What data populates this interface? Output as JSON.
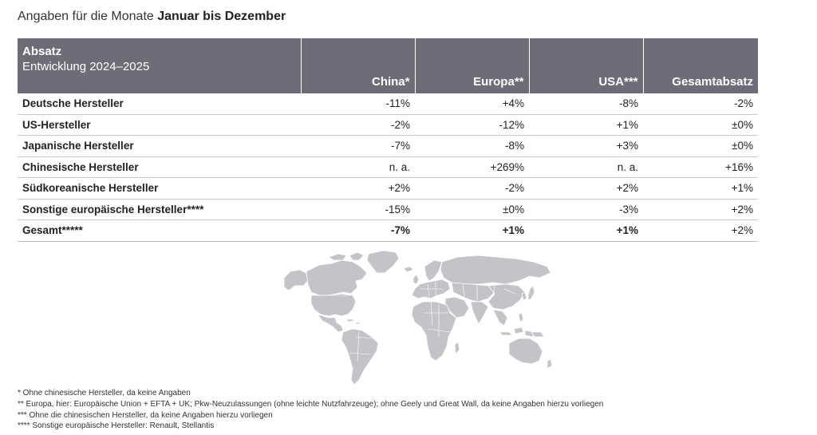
{
  "title": {
    "prefix": "Angaben für die Monate ",
    "bold": "Januar bis Dezember"
  },
  "table": {
    "header": {
      "title": "Absatz",
      "subtitle": "Entwicklung 2024–2025",
      "columns": [
        "China*",
        "Europa**",
        "USA***",
        "Gesamtabsatz"
      ]
    },
    "rows": [
      {
        "label": "Deutsche Hersteller",
        "values": [
          "-11%",
          "+4%",
          "-8%",
          "-2%"
        ]
      },
      {
        "label": "US-Hersteller",
        "values": [
          "-2%",
          "-12%",
          "+1%",
          "±0%"
        ]
      },
      {
        "label": "Japanische Hersteller",
        "values": [
          "-7%",
          "-8%",
          "+3%",
          "±0%"
        ]
      },
      {
        "label": "Chinesische Hersteller",
        "values": [
          "n. a.",
          "+269%",
          "n. a.",
          "+16%"
        ]
      },
      {
        "label": "Südkoreanische Hersteller",
        "values": [
          "+2%",
          "-2%",
          "+2%",
          "+1%"
        ]
      },
      {
        "label": "Sonstige europäische Hersteller****",
        "values": [
          "-15%",
          "±0%",
          "-3%",
          "+2%"
        ]
      },
      {
        "label": "Gesamt*****",
        "values": [
          "-7%",
          "+1%",
          "+1%",
          "+2%"
        ]
      }
    ]
  },
  "map": {
    "icon": "world-map-icon",
    "fill_color": "#c4c4c8",
    "border_color": "#ffffff"
  },
  "footnotes": [
    "* Ohne chinesische Hersteller, da keine Angaben",
    "** Europa, hier: Europäische Union + EFTA + UK; Pkw-Neuzulassungen (ohne leichte Nutzfahrzeuge); ohne Geely und Great Wall, da keine Angaben hierzu vorliegen",
    "*** Ohne die chinesischen Hersteller, da keine Angaben hierzu vorliegen",
    "**** Sonstige europäische Hersteller: Renault, Stellantis"
  ],
  "colors": {
    "header_bg": "#6e6c77",
    "header_text": "#ffffff",
    "row_divider": "#c9c9c9"
  }
}
